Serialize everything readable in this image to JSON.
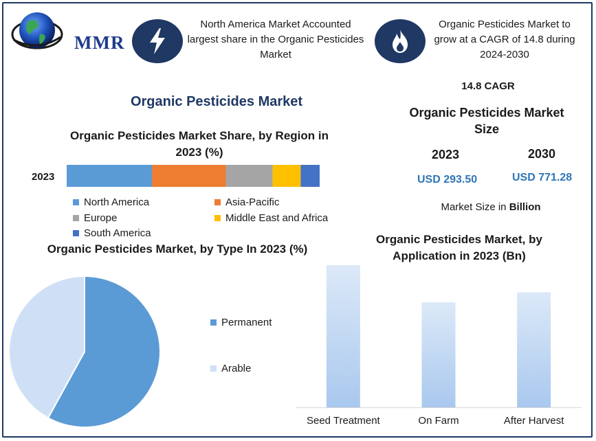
{
  "header": {
    "logo_text": "MMR",
    "highlight1": "North America Market Accounted largest share in the Organic Pesticides Market",
    "highlight2": "Organic Pesticides Market to grow at a CAGR of 14.8 during 2024-2030",
    "icon1": "lightning-icon",
    "icon2": "flame-icon"
  },
  "main_title": "Organic Pesticides Market",
  "cagr_label": "14.8 CAGR",
  "market_size": {
    "title": "Organic Pesticides Market Size",
    "year1": "2023",
    "value1": "USD 293.50",
    "year2": "2030",
    "value2": "USD 771.28",
    "unit_prefix": "Market Size in",
    "unit_bold": "Billion"
  },
  "chart_data": [
    {
      "type": "bar",
      "orientation": "horizontal-stacked",
      "title": "Organic Pesticides Market Share, by Region in 2023 (%)",
      "categories": [
        "2023"
      ],
      "series": [
        {
          "name": "North America",
          "values": [
            33.7
          ],
          "color": "#5b9bd5"
        },
        {
          "name": "Asia-Pacific",
          "values": [
            29.2
          ],
          "color": "#ed7d31"
        },
        {
          "name": "Europe",
          "values": [
            18.5
          ],
          "color": "#a5a5a5"
        },
        {
          "name": "Middle East and Africa",
          "values": [
            11.1
          ],
          "color": "#ffc000"
        },
        {
          "name": "South America",
          "values": [
            7.5
          ],
          "color": "#4472c4"
        }
      ],
      "legend": "bottom"
    },
    {
      "type": "pie",
      "title": "Organic Pesticides Market, by Type In 2023 (%)",
      "labels": [
        "Permanent",
        "Arable"
      ],
      "values": [
        58,
        42
      ],
      "colors": [
        "#5b9bd5",
        "#cfe0f6"
      ],
      "legend": "right"
    },
    {
      "type": "bar",
      "title": "Organic Pesticides Market, by Application in 2023 (Bn)",
      "categories": [
        "Seed Treatment",
        "On Farm",
        "After Harvest"
      ],
      "values": [
        100,
        74,
        81
      ],
      "color": "#c7dcf4",
      "legend": "none"
    }
  ]
}
